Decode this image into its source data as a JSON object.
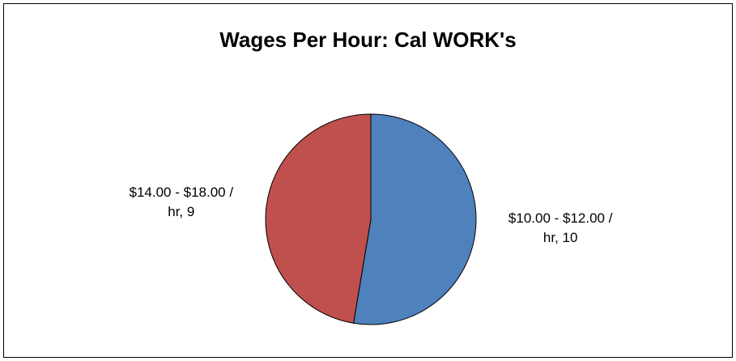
{
  "chart_data": {
    "type": "pie",
    "title": "Wages Per Hour: Cal WORK's",
    "categories": [
      "$10.00 - $12.00 / hr",
      "$14.00 - $18.00 / hr"
    ],
    "values": [
      10,
      9
    ],
    "value_labels": [
      "$10.00 - $12.00 / hr, 10",
      "$14.00 - $18.00 / hr, 9"
    ],
    "colors": [
      "#4f81bd",
      "#c0504d"
    ]
  }
}
